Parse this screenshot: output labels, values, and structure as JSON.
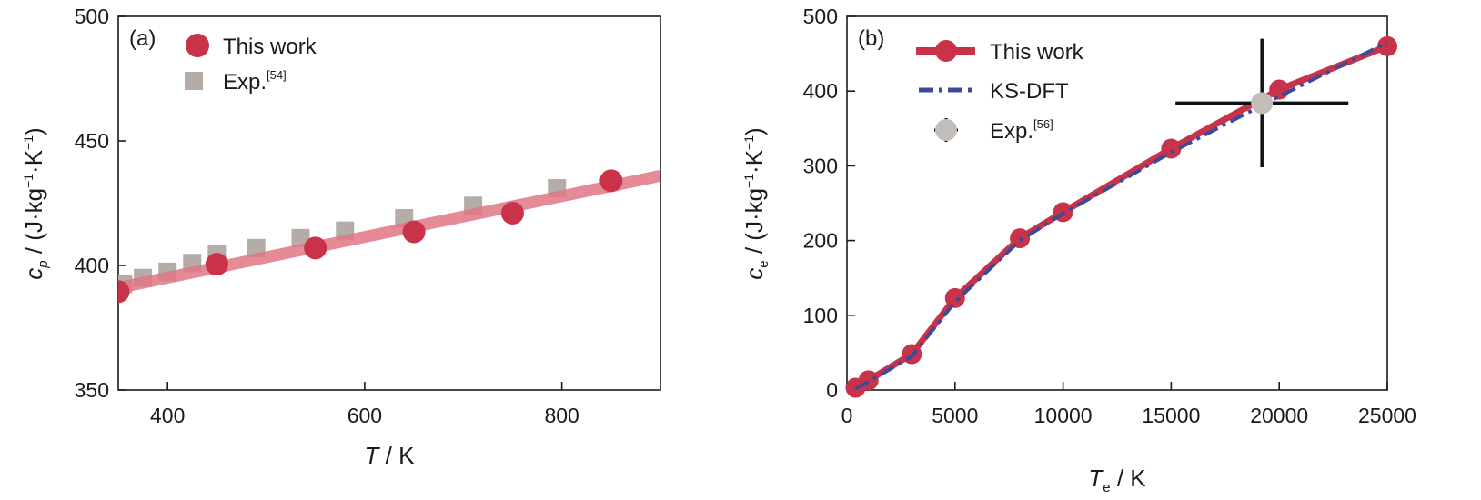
{
  "chart_data": [
    {
      "type": "scatter",
      "panel_label": "(a)",
      "xlabel": {
        "sym": "T",
        "unit": " / K"
      },
      "ylabel": {
        "sym": "c",
        "sub": "p",
        "unit": " / (J·kg",
        "e1": "−1",
        "mid": "·K",
        "e2": "−1",
        "close": ")"
      },
      "xlim": [
        350,
        900
      ],
      "ylim": [
        350,
        500
      ],
      "xticks": [
        400,
        600,
        800
      ],
      "yticks": [
        350,
        400,
        450,
        500
      ],
      "legend_position": "top-left",
      "colors": {
        "this_work": "#c8334a",
        "exp": "#b5aca7",
        "fit_line": "#e07585"
      },
      "series": [
        {
          "name": "This work",
          "marker": "circle",
          "x": [
            350,
            450,
            550,
            650,
            750,
            850
          ],
          "y": [
            389.5,
            400.5,
            407,
            413.5,
            421,
            434
          ]
        },
        {
          "name": "Exp.",
          "ref": "[54]",
          "marker": "square",
          "x": [
            355,
            375,
            400,
            425,
            450,
            490,
            535,
            580,
            640,
            710,
            795
          ],
          "y": [
            392.5,
            395,
            397.5,
            401,
            404.5,
            407,
            411,
            414,
            419,
            424,
            431
          ]
        },
        {
          "name": "",
          "marker": "line",
          "x": [
            350,
            900
          ],
          "y": [
            391,
            436
          ]
        }
      ]
    },
    {
      "type": "line",
      "panel_label": "(b)",
      "xlabel": {
        "sym": "T",
        "sub": "e",
        "unit": " / K"
      },
      "ylabel": {
        "sym": "c",
        "sub": "e",
        "unit": " / (J·kg",
        "e1": "−1",
        "mid": "·K",
        "e2": "−1",
        "close": ")"
      },
      "xlim": [
        0,
        25000
      ],
      "ylim": [
        0,
        500
      ],
      "xticks": [
        0,
        5000,
        10000,
        15000,
        20000,
        25000
      ],
      "yticks": [
        0,
        100,
        200,
        300,
        400,
        500
      ],
      "legend_position": "top-left",
      "colors": {
        "this_work": "#c8334a",
        "ksdft": "#3c4a9a",
        "exp": "#c4beba",
        "error_bar": "#111111"
      },
      "series": [
        {
          "name": "This work",
          "marker": "line+circle",
          "x": [
            400,
            1000,
            3000,
            5000,
            8000,
            10000,
            15000,
            20000,
            25000
          ],
          "y": [
            3,
            13,
            48,
            123,
            203,
            238,
            323,
            402,
            460
          ]
        },
        {
          "name": "KS-DFT",
          "marker": "dash-dot",
          "x": [
            400,
            1000,
            3000,
            5000,
            8000,
            10000,
            15000,
            20000,
            25000
          ],
          "y": [
            2,
            11,
            45,
            118,
            200,
            236,
            318,
            393,
            465
          ]
        },
        {
          "name": "Exp.",
          "ref": "[56]",
          "marker": "circle+errorbar",
          "x": [
            19200
          ],
          "y": [
            384
          ],
          "xerr": [
            4000
          ],
          "yerr": [
            86
          ]
        }
      ]
    }
  ]
}
